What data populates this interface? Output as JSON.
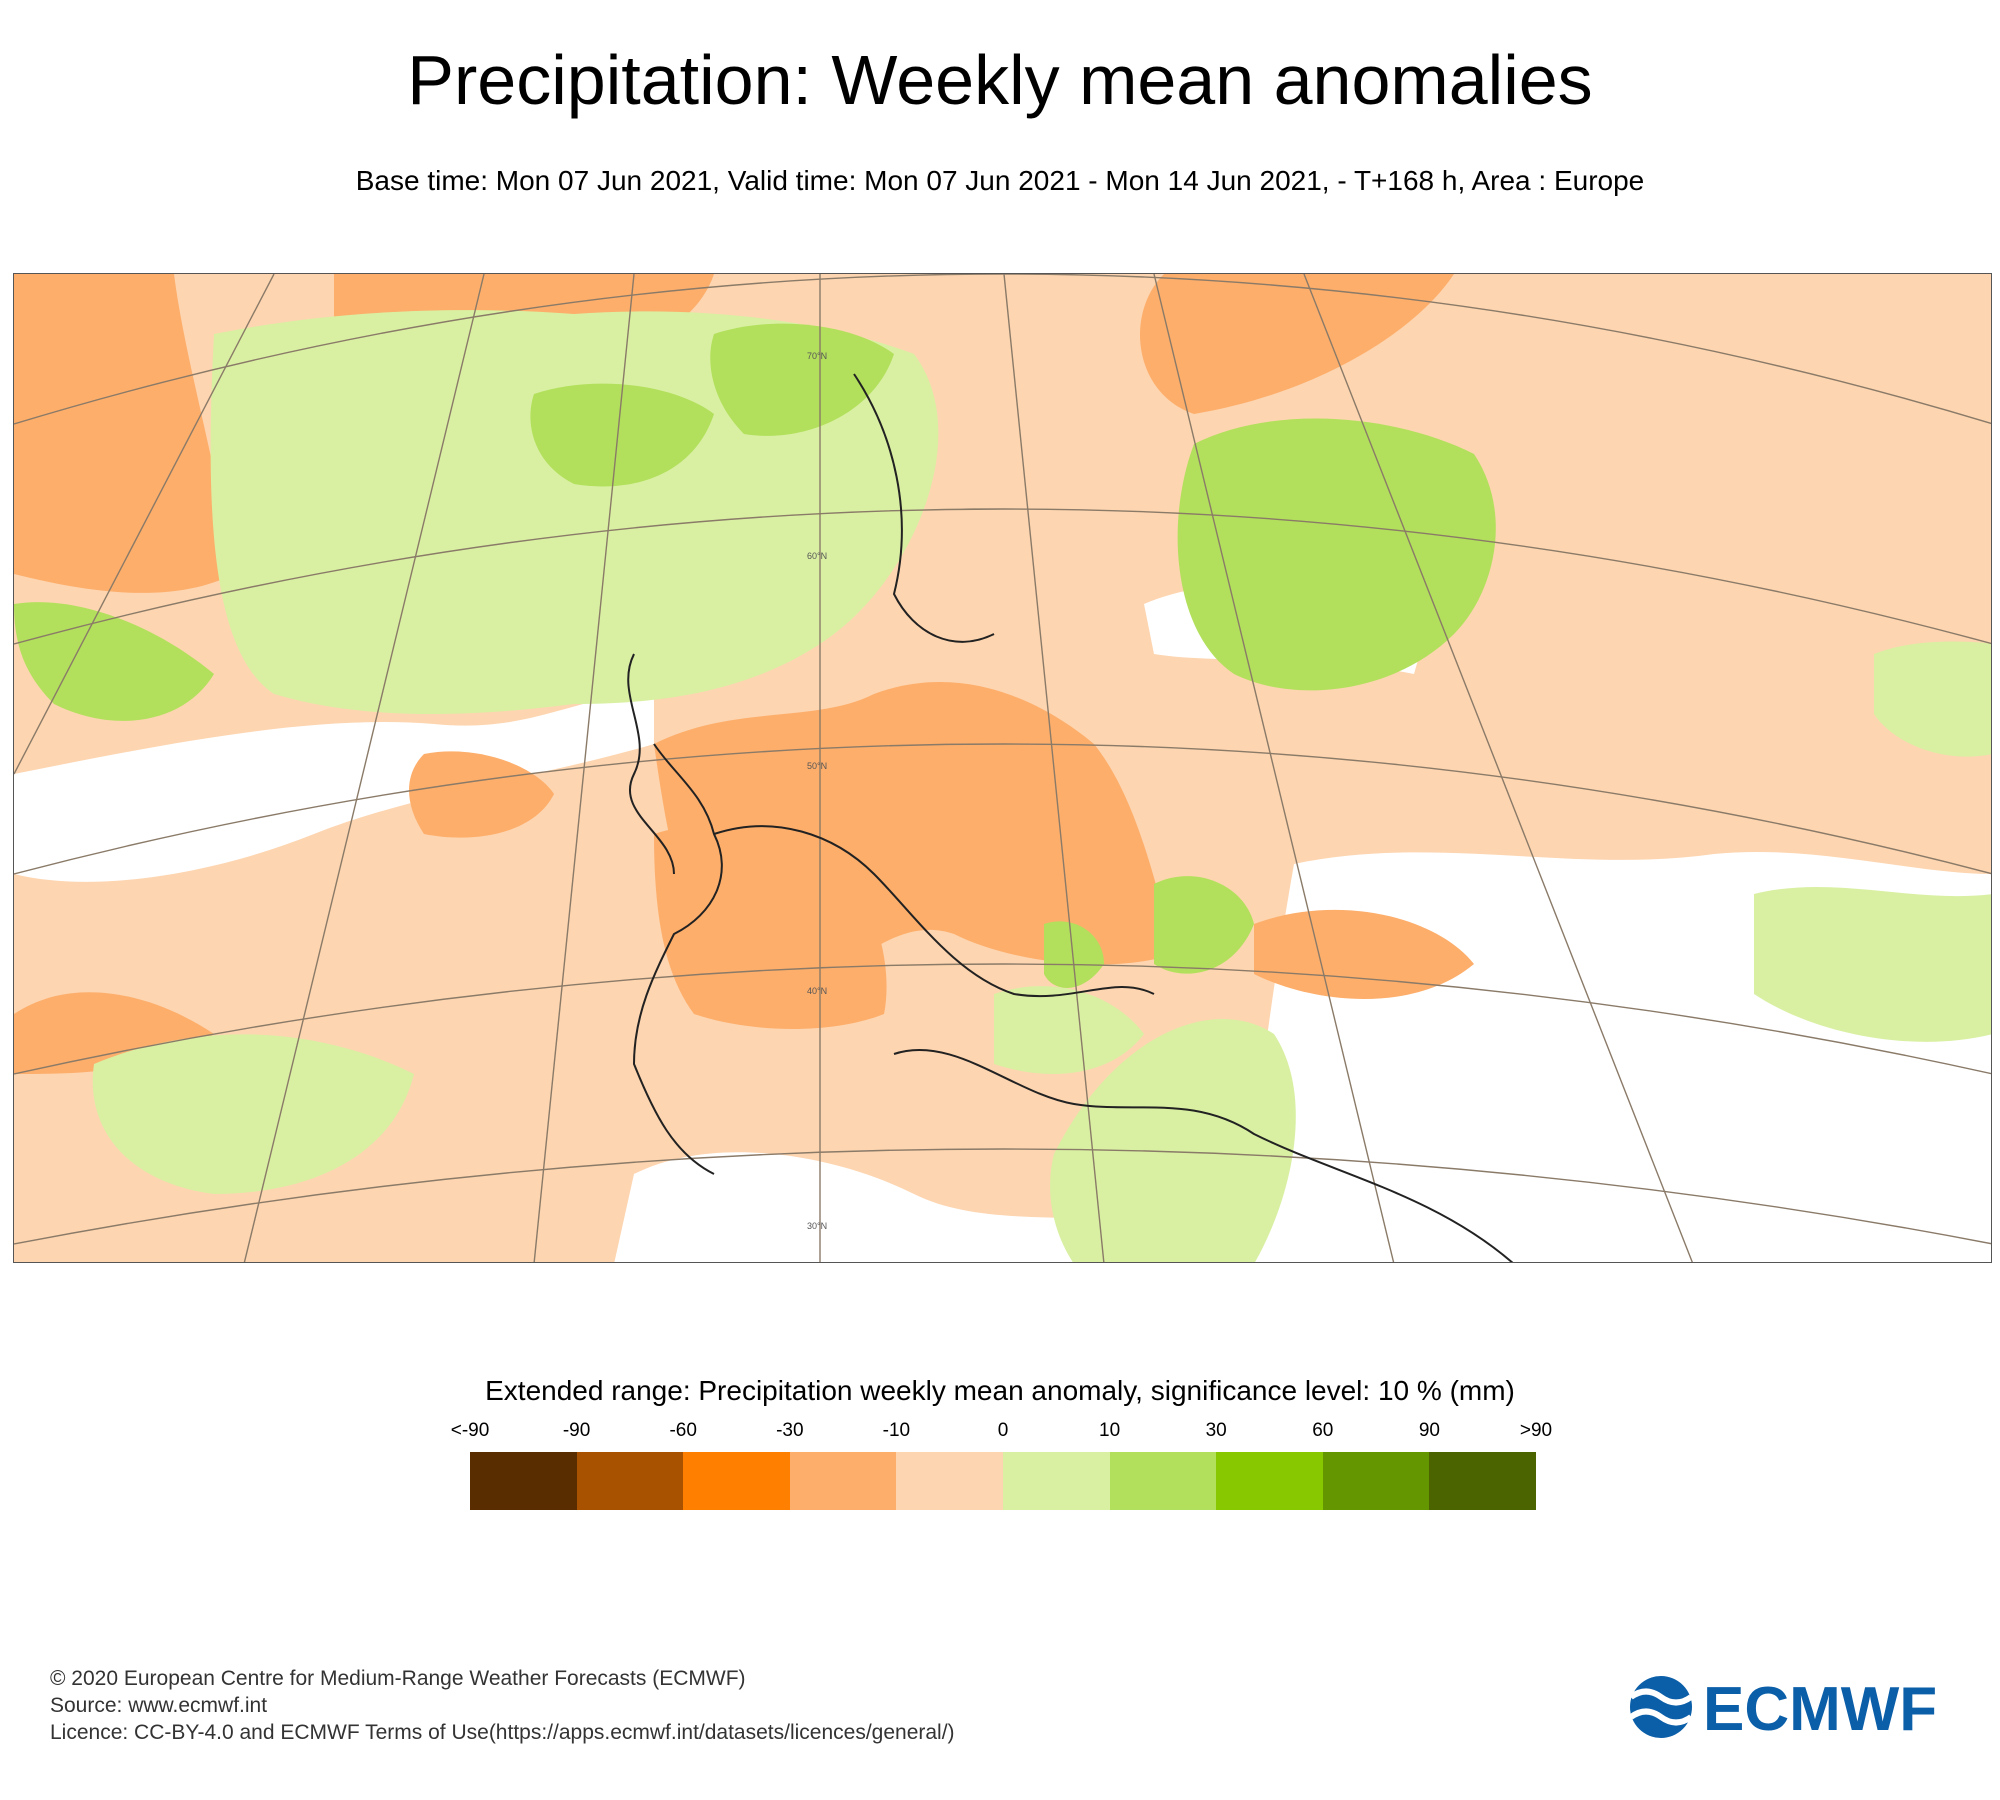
{
  "title": "Precipitation: Weekly mean anomalies",
  "subtitle": "Base time: Mon 07 Jun 2021, Valid time: Mon 07 Jun 2021 - Mon 14 Jun 2021, - T+168 h, Area : Europe",
  "map": {
    "latitude_labels": [
      "70°N",
      "60°N",
      "50°N",
      "40°N",
      "30°N"
    ]
  },
  "legend": {
    "title": "Extended range: Precipitation weekly mean anomaly, significance level: 10 % (mm)",
    "ticks": [
      "<-90",
      "-90",
      "-60",
      "-30",
      "-10",
      "0",
      "10",
      "30",
      "60",
      "90",
      ">90"
    ],
    "colors": [
      "#5a2d00",
      "#a85200",
      "#ff7f00",
      "#fdae6b",
      "#fdd5b0",
      "#d9f0a3",
      "#b2e05c",
      "#87c800",
      "#649600",
      "#4b6400"
    ]
  },
  "footer": {
    "copyright": "© 2020 European Centre for Medium-Range Weather Forecasts (ECMWF)",
    "source": "Source: www.ecmwf.int",
    "licence": "Licence: CC-BY-4.0 and ECMWF Terms of Use(https://apps.ecmwf.int/datasets/licences/general/)"
  },
  "logo": {
    "text": "ECMWF",
    "color": "#0b5ea8"
  }
}
